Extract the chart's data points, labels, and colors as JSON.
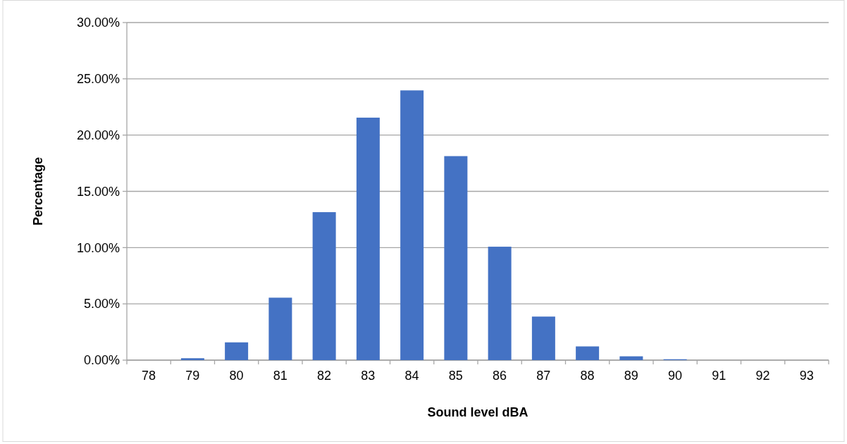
{
  "chart_data": {
    "type": "bar",
    "xlabel": "Sound level dBA",
    "ylabel": "Percentage",
    "categories": [
      "78",
      "79",
      "80",
      "81",
      "82",
      "83",
      "84",
      "85",
      "86",
      "87",
      "88",
      "89",
      "90",
      "91",
      "92",
      "93"
    ],
    "values": [
      0,
      0.17,
      1.58,
      5.55,
      13.15,
      21.55,
      23.97,
      18.13,
      10.08,
      3.87,
      1.22,
      0.34,
      0.08,
      0,
      0,
      0
    ],
    "color": "#4472c4",
    "ylim": [
      0,
      30
    ],
    "yticks": [
      {
        "value": 0,
        "label": "0.00%"
      },
      {
        "value": 5,
        "label": "5.00%"
      },
      {
        "value": 10,
        "label": "10.00%"
      },
      {
        "value": 15,
        "label": "15.00%"
      },
      {
        "value": 20,
        "label": "20.00%"
      },
      {
        "value": 25,
        "label": "25.00%"
      },
      {
        "value": 30,
        "label": "30.00%"
      }
    ],
    "grid": "y"
  }
}
